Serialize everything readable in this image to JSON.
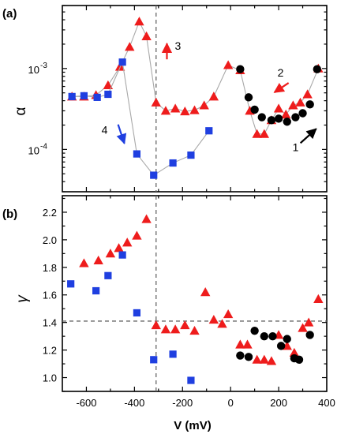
{
  "chart_data": [
    {
      "panel_label": "(a)",
      "type": "scatter",
      "ylabel": "α",
      "yscale": "log",
      "ylim": [
        3e-05,
        0.006
      ],
      "xlim": [
        -700,
        400
      ],
      "x_ticks": [
        -600,
        -400,
        -200,
        0,
        200,
        400
      ],
      "y_ticks": [
        {
          "value": 0.001,
          "label_base": "10",
          "label_exp": "-3"
        },
        {
          "value": 0.0001,
          "label_base": "10",
          "label_exp": "-4"
        }
      ],
      "reference_lines": [
        {
          "orientation": "vertical",
          "x": -310,
          "style": "dashed"
        }
      ],
      "series": [
        {
          "marker": "triangle",
          "color": "#ee1c1c",
          "connected": true,
          "x": [
            -660,
            -610,
            -560,
            -510,
            -460,
            -420,
            -380,
            -350,
            -310,
            -270,
            -230,
            -190,
            -150,
            -110,
            -70,
            -10,
            40,
            80,
            110,
            140,
            170,
            200,
            230,
            260,
            290,
            320,
            365
          ],
          "y": [
            0.00045,
            0.00045,
            0.00047,
            0.00062,
            0.00105,
            0.00185,
            0.0038,
            0.0025,
            0.00038,
            0.0003,
            0.00032,
            0.000295,
            0.000305,
            0.00035,
            0.00045,
            0.0011,
            0.00095,
            0.0003,
            0.000155,
            0.000155,
            0.00023,
            0.00032,
            0.00027,
            0.00035,
            0.00038,
            0.00048,
            0.001
          ]
        },
        {
          "marker": "square",
          "color": "#1f3fe0",
          "connected": true,
          "x": [
            -660,
            -610,
            -555,
            -510,
            -450,
            -390,
            -320,
            -240,
            -165,
            -90
          ],
          "y": [
            0.00045,
            0.00046,
            0.00044,
            0.00048,
            0.0012,
            8.8e-05,
            4.8e-05,
            6.8e-05,
            8.5e-05,
            0.00017
          ]
        },
        {
          "marker": "circle",
          "color": "#000000",
          "connected": false,
          "x": [
            40,
            75,
            100,
            130,
            170,
            200,
            235,
            270,
            300,
            330,
            360
          ],
          "y": [
            0.00098,
            0.00044,
            0.00031,
            0.00025,
            0.00023,
            0.00024,
            0.00022,
            0.00025,
            0.00028,
            0.00036,
            0.00098
          ]
        }
      ],
      "annotations": [
        {
          "text": "1",
          "arrow_color": "#000000",
          "x": 330,
          "y": 0.00015
        },
        {
          "text": "2",
          "arrow_color": "#ee1c1c",
          "x": 215,
          "y": 0.00058
        },
        {
          "text": "3",
          "arrow_color": "#ee1c1c",
          "x": -265,
          "y": 0.0017
        },
        {
          "text": "4",
          "arrow_color": "#1f3fe0",
          "x": -455,
          "y": 0.00017
        }
      ]
    },
    {
      "panel_label": "(b)",
      "type": "scatter",
      "ylabel": "γ",
      "xlabel": "V (mV)",
      "ylim": [
        0.9,
        2.32
      ],
      "xlim": [
        -700,
        400
      ],
      "x_ticks": [
        -600,
        -400,
        -200,
        0,
        200,
        400
      ],
      "y_ticks": [
        1.0,
        1.2,
        1.4,
        1.6,
        1.8,
        2.0,
        2.2
      ],
      "reference_lines": [
        {
          "orientation": "vertical",
          "x": -310,
          "style": "dashed"
        },
        {
          "orientation": "horizontal",
          "y": 1.41,
          "style": "dashed"
        }
      ],
      "series": [
        {
          "marker": "triangle",
          "color": "#ee1c1c",
          "x": [
            -610,
            -550,
            -500,
            -465,
            -430,
            -390,
            -350,
            -310,
            -270,
            -230,
            -190,
            -150,
            -105,
            -70,
            -35,
            -10,
            40,
            70,
            110,
            140,
            170,
            200,
            235,
            265,
            300,
            325,
            365
          ],
          "y": [
            1.83,
            1.85,
            1.9,
            1.94,
            1.98,
            2.03,
            2.15,
            1.38,
            1.35,
            1.35,
            1.38,
            1.34,
            1.62,
            1.42,
            1.39,
            1.46,
            1.24,
            1.24,
            1.13,
            1.13,
            1.12,
            1.31,
            1.23,
            1.18,
            1.36,
            1.4,
            1.57
          ]
        },
        {
          "marker": "square",
          "color": "#1f3fe0",
          "x": [
            -665,
            -560,
            -510,
            -450,
            -390,
            -320,
            -240,
            -165
          ],
          "y": [
            1.68,
            1.63,
            1.74,
            1.89,
            1.47,
            1.13,
            1.17,
            0.98
          ]
        },
        {
          "marker": "circle",
          "color": "#000000",
          "x": [
            40,
            75,
            100,
            140,
            175,
            210,
            235,
            265,
            285,
            330
          ],
          "y": [
            1.16,
            1.15,
            1.34,
            1.3,
            1.3,
            1.23,
            1.28,
            1.14,
            1.13,
            1.31
          ]
        }
      ]
    }
  ]
}
